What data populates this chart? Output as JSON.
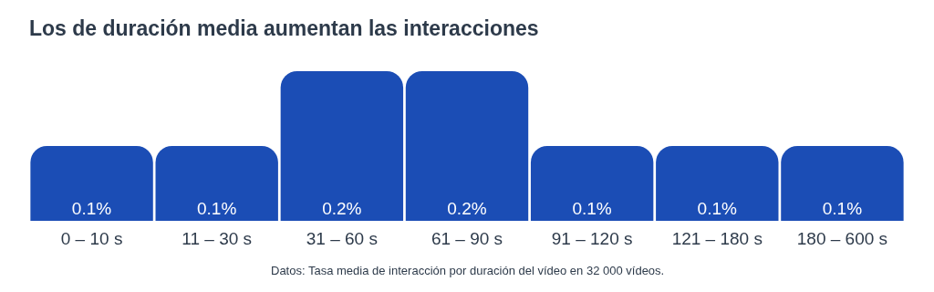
{
  "chart_data": {
    "type": "bar",
    "title": "Los de duración media aumentan las interacciones",
    "categories": [
      "0 – 10 s",
      "11 – 30 s",
      "31 – 60 s",
      "61 – 90 s",
      "91 – 120 s",
      "121 – 180 s",
      "180 – 600 s"
    ],
    "values": [
      0.1,
      0.1,
      0.2,
      0.2,
      0.1,
      0.1,
      0.1
    ],
    "value_labels": [
      "0.1%",
      "0.1%",
      "0.2%",
      "0.2%",
      "0.1%",
      "0.1%",
      "0.1%"
    ],
    "color": "#1b4db5",
    "ylim": [
      0,
      0.2
    ],
    "annotations": [
      "Datos: Tasa media de interacción por duración del vídeo en 32 000 vídeos."
    ]
  }
}
